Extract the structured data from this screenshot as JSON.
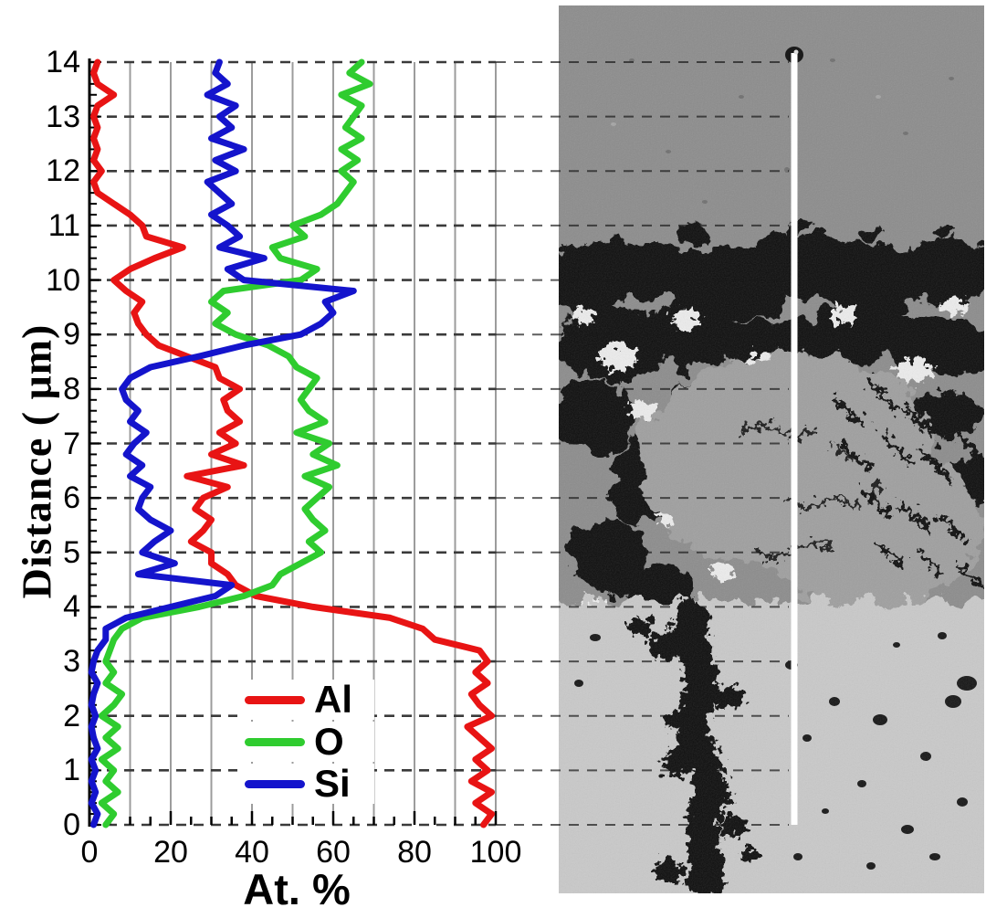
{
  "chart_data": {
    "type": "line",
    "orientation": "horizontal-profile",
    "xlabel": "At. %",
    "ylabel": "Distance ( μm)",
    "xlim": [
      0,
      100
    ],
    "ylim": [
      0,
      14
    ],
    "x_ticks": [
      0,
      20,
      40,
      60,
      80,
      100
    ],
    "y_ticks": [
      0,
      1,
      2,
      3,
      4,
      5,
      6,
      7,
      8,
      9,
      10,
      11,
      12,
      13,
      14
    ],
    "grid": {
      "vertical_solid_step": 10,
      "vertical_color": "#9c9c9c",
      "horizontal_dashed_step": 1,
      "horizontal_color": "#3a3a3a",
      "dashed_lines_extend_to_scan_line": true
    },
    "legend_position": "lower-center-inside",
    "legend": [
      {
        "label": "Al",
        "color": "#e81414"
      },
      {
        "label": "O",
        "color": "#2fcc2f"
      },
      {
        "label": "Si",
        "color": "#1414cc"
      }
    ],
    "distance_step": 0.2,
    "series": [
      {
        "name": "Al",
        "color": "#e81414",
        "values": [
          97,
          99,
          95,
          99,
          94,
          98,
          95,
          99,
          96,
          93,
          99,
          96,
          94,
          98,
          95,
          98,
          96,
          85,
          82,
          74,
          55,
          41,
          36,
          34,
          30,
          30,
          25,
          28,
          30,
          26,
          28,
          34,
          24,
          38,
          30,
          36,
          32,
          37,
          34,
          33,
          37,
          32,
          31,
          24,
          17,
          14,
          12,
          11,
          13,
          9,
          6,
          10,
          16,
          23,
          14,
          13,
          10,
          6,
          2,
          1,
          3,
          1,
          2,
          1,
          2,
          1,
          2,
          6,
          2,
          1,
          2
        ]
      },
      {
        "name": "O",
        "color": "#2fcc2f",
        "values": [
          4,
          6,
          3,
          7,
          4,
          6,
          3,
          7,
          4,
          7,
          3,
          6,
          8,
          4,
          6,
          4,
          5,
          6,
          8,
          13,
          27,
          38,
          45,
          47,
          52,
          57,
          54,
          58,
          55,
          53,
          56,
          59,
          53,
          61,
          55,
          59,
          51,
          58,
          54,
          52,
          54,
          56,
          51,
          49,
          44,
          36,
          31,
          34,
          30,
          33,
          52,
          56,
          47,
          45,
          53,
          50,
          57,
          61,
          63,
          65,
          62,
          66,
          62,
          67,
          63,
          65,
          67,
          62,
          69,
          64,
          67
        ]
      },
      {
        "name": "Si",
        "color": "#1414cc",
        "values": [
          1,
          2,
          0.5,
          1.5,
          0.5,
          1.5,
          0.5,
          2,
          1,
          0.5,
          1.5,
          0.5,
          1,
          2,
          0.5,
          1,
          2,
          4,
          4,
          9,
          20,
          31,
          35,
          12,
          21,
          13,
          16,
          20,
          15,
          12,
          13,
          15,
          10,
          13,
          9,
          11,
          14,
          10,
          12,
          9,
          8,
          10,
          15,
          27,
          38,
          52,
          57,
          60,
          58,
          65,
          38,
          34,
          43,
          32,
          37,
          34,
          30,
          35,
          32,
          29,
          36,
          31,
          38,
          30,
          35,
          32,
          36,
          29,
          34,
          31,
          32
        ]
      }
    ]
  },
  "micrograph": {
    "scan_line_color": "#ffffff",
    "top_region_gray": "#8c8c8c",
    "bottom_region_gray": "#c9c9c9"
  }
}
